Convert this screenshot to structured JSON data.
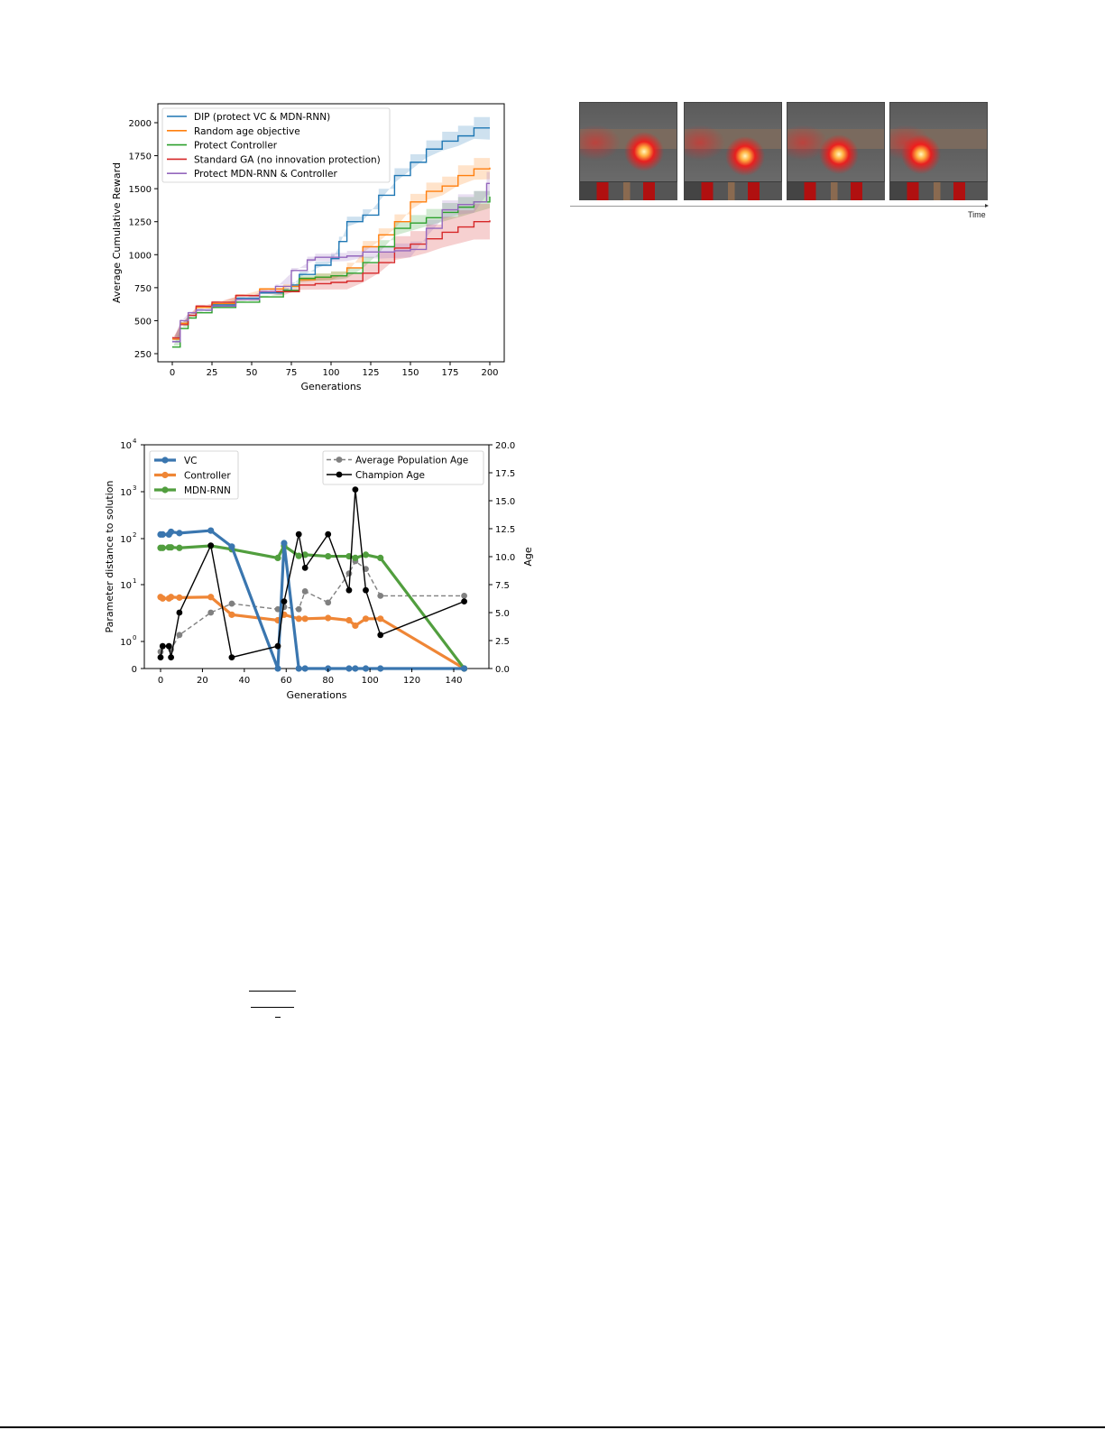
{
  "figure_top_left": {
    "chart_data": {
      "type": "line",
      "title": "",
      "xlabel": "Generations",
      "ylabel": "Average Cumulative Reward",
      "xlim": [
        -9,
        209
      ],
      "ylim": [
        200,
        2100
      ],
      "xticks": [
        0,
        25,
        50,
        75,
        100,
        125,
        150,
        175,
        200
      ],
      "yticks": [
        250,
        500,
        750,
        1000,
        1250,
        1500,
        1750,
        2000
      ],
      "grid": false,
      "legend_position": "upper left",
      "series": [
        {
          "name": "DIP (protect  VC  & MDN-RNN)",
          "color": "#1f77b4",
          "x": [
            0,
            5,
            10,
            15,
            25,
            40,
            55,
            70,
            75,
            80,
            90,
            100,
            105,
            110,
            120,
            130,
            140,
            150,
            160,
            170,
            180,
            190,
            200
          ],
          "y": [
            340,
            480,
            540,
            580,
            620,
            670,
            710,
            730,
            770,
            850,
            920,
            970,
            1100,
            1250,
            1300,
            1450,
            1600,
            1700,
            1800,
            1860,
            1900,
            1960,
            1960
          ]
        },
        {
          "name": "Random age objective",
          "color": "#ff7f0e",
          "x": [
            0,
            5,
            10,
            15,
            25,
            40,
            55,
            70,
            80,
            90,
            100,
            110,
            120,
            130,
            140,
            150,
            160,
            170,
            180,
            190,
            200
          ],
          "y": [
            360,
            480,
            540,
            600,
            630,
            690,
            740,
            760,
            810,
            830,
            840,
            900,
            1060,
            1150,
            1250,
            1400,
            1480,
            1520,
            1600,
            1650,
            1660
          ]
        },
        {
          "name": "Protect Controller",
          "color": "#2ca02c",
          "x": [
            0,
            5,
            10,
            15,
            25,
            40,
            55,
            70,
            80,
            90,
            100,
            110,
            120,
            130,
            140,
            150,
            160,
            170,
            180,
            190,
            200
          ],
          "y": [
            300,
            440,
            520,
            560,
            600,
            640,
            680,
            730,
            820,
            830,
            840,
            860,
            940,
            1060,
            1200,
            1240,
            1280,
            1320,
            1360,
            1400,
            1440
          ]
        },
        {
          "name": "Standard GA (no innovation protection)",
          "color": "#d62728",
          "x": [
            0,
            5,
            10,
            15,
            25,
            40,
            55,
            70,
            80,
            90,
            100,
            110,
            120,
            130,
            140,
            150,
            160,
            170,
            180,
            190,
            200
          ],
          "y": [
            370,
            470,
            540,
            610,
            640,
            690,
            720,
            720,
            770,
            780,
            790,
            800,
            860,
            940,
            1050,
            1080,
            1120,
            1170,
            1210,
            1250,
            1260
          ]
        },
        {
          "name": "Protect MDN-RNN & Controller",
          "color": "#9467bd",
          "x": [
            0,
            5,
            10,
            15,
            25,
            40,
            55,
            65,
            75,
            85,
            90,
            100,
            110,
            120,
            130,
            140,
            150,
            160,
            170,
            180,
            190,
            198,
            200
          ],
          "y": [
            340,
            500,
            560,
            580,
            610,
            660,
            720,
            760,
            880,
            960,
            980,
            980,
            990,
            1020,
            1020,
            1030,
            1040,
            1200,
            1340,
            1380,
            1400,
            1540,
            1540
          ]
        }
      ]
    }
  },
  "figure_top_right": {
    "frames": [
      {
        "label": "frame-1"
      },
      {
        "label": "frame-2"
      },
      {
        "label": "frame-3"
      },
      {
        "label": "frame-4"
      }
    ],
    "axis_label": "Time"
  },
  "figure_bottom_left": {
    "chart_data": {
      "type": "line",
      "title": "",
      "xlabel": "Generations",
      "ylabel": "Parameter distance to solution",
      "ylabel_right": "Age",
      "xticks": [
        0,
        20,
        40,
        60,
        80,
        100,
        120,
        140
      ],
      "yticks_left": [
        "0",
        "10^0",
        "10^1",
        "10^2",
        "10^3",
        "10^4"
      ],
      "yticks_right": [
        0.0,
        2.5,
        5.0,
        7.5,
        10.0,
        12.5,
        15.0,
        17.5,
        20.0
      ],
      "yscale_left": "symlog",
      "ylim_right": [
        0,
        20
      ],
      "grid": false,
      "legend_left": [
        "VC",
        "Controller",
        "MDN-RNN"
      ],
      "legend_right": [
        "Average Population Age",
        "Champion Age"
      ],
      "series": [
        {
          "name": "VC",
          "axis": "left",
          "color": "#3a76af",
          "x": [
            0,
            1,
            4,
            5,
            9,
            24,
            34,
            56,
            59,
            66,
            69,
            80,
            90,
            93,
            98,
            105,
            145
          ],
          "y": [
            150,
            150,
            150,
            170,
            160,
            180,
            85,
            0,
            100,
            0,
            0,
            0,
            0,
            0,
            0,
            0,
            0
          ]
        },
        {
          "name": "Controller",
          "axis": "left",
          "color": "#ef8636",
          "x": [
            0,
            1,
            4,
            5,
            9,
            24,
            34,
            56,
            59,
            66,
            69,
            80,
            90,
            93,
            98,
            105,
            145
          ],
          "y": [
            8.0,
            7.5,
            7.5,
            8.0,
            7.8,
            8.0,
            3.5,
            2.7,
            3.5,
            2.9,
            2.9,
            3.0,
            2.7,
            2.1,
            2.9,
            2.9,
            0
          ]
        },
        {
          "name": "MDN-RNN",
          "axis": "left",
          "color": "#519e3e",
          "x": [
            0,
            1,
            4,
            5,
            9,
            24,
            34,
            56,
            59,
            66,
            69,
            80,
            90,
            93,
            98,
            105,
            145
          ],
          "y": [
            80,
            80,
            82,
            82,
            80,
            88,
            75,
            50,
            88,
            55,
            58,
            54,
            54,
            50,
            58,
            50,
            0
          ]
        },
        {
          "name": "Average Population Age",
          "axis": "right",
          "color": "#808080",
          "style": "dashed",
          "x": [
            0,
            1,
            4,
            5,
            9,
            24,
            34,
            56,
            59,
            66,
            69,
            80,
            90,
            93,
            98,
            105,
            145
          ],
          "y": [
            1.5,
            2.0,
            2.0,
            1.7,
            3.0,
            5.0,
            5.8,
            5.3,
            5.5,
            5.3,
            6.9,
            5.9,
            8.5,
            9.6,
            8.9,
            6.5,
            6.5
          ]
        },
        {
          "name": "Champion Age",
          "axis": "right",
          "color": "#000000",
          "x": [
            0,
            1,
            4,
            5,
            9,
            24,
            34,
            56,
            59,
            66,
            69,
            80,
            90,
            93,
            98,
            105,
            145
          ],
          "y": [
            1,
            2,
            2,
            1,
            5,
            11,
            1,
            2,
            6,
            12,
            9,
            12,
            7,
            16,
            7,
            3,
            6
          ]
        }
      ]
    }
  }
}
